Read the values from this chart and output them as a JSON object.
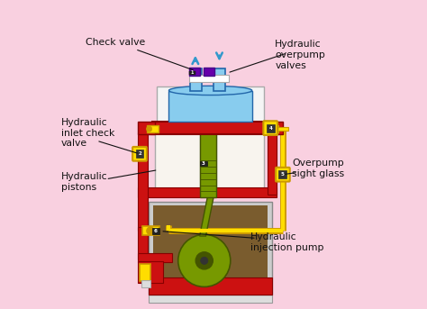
{
  "bg_color": "#f9d0e0",
  "labels": {
    "check_valve": "Check valve",
    "hydraulic_overpump": "Hydraulic\noverpump\nvalves",
    "hydraulic_inlet": "Hydraulic\ninlet check\nvalve",
    "hydraulic_pistons": "Hydraulic\npistons",
    "overpump_sight": "Overpump\nsight glass",
    "hydraulic_injection": "Hydraulic\ninjection pump"
  },
  "colors": {
    "red": "#cc1111",
    "dark_red": "#880000",
    "blue_light": "#88ccee",
    "blue_med": "#3399cc",
    "blue_dark": "#2266aa",
    "green": "#779900",
    "green_dark": "#445500",
    "brown": "#7a5c2e",
    "brown_dark": "#5a3c1a",
    "yellow": "#ffdd00",
    "gold": "#cc9900",
    "gray_light": "#f0f0f0",
    "gray": "#cccccc",
    "gray_dark": "#888888",
    "white": "#ffffff",
    "black": "#000000",
    "purple": "#6600aa",
    "cream": "#f8f4ee",
    "silver": "#c0c0c0",
    "orange": "#dd8800"
  }
}
